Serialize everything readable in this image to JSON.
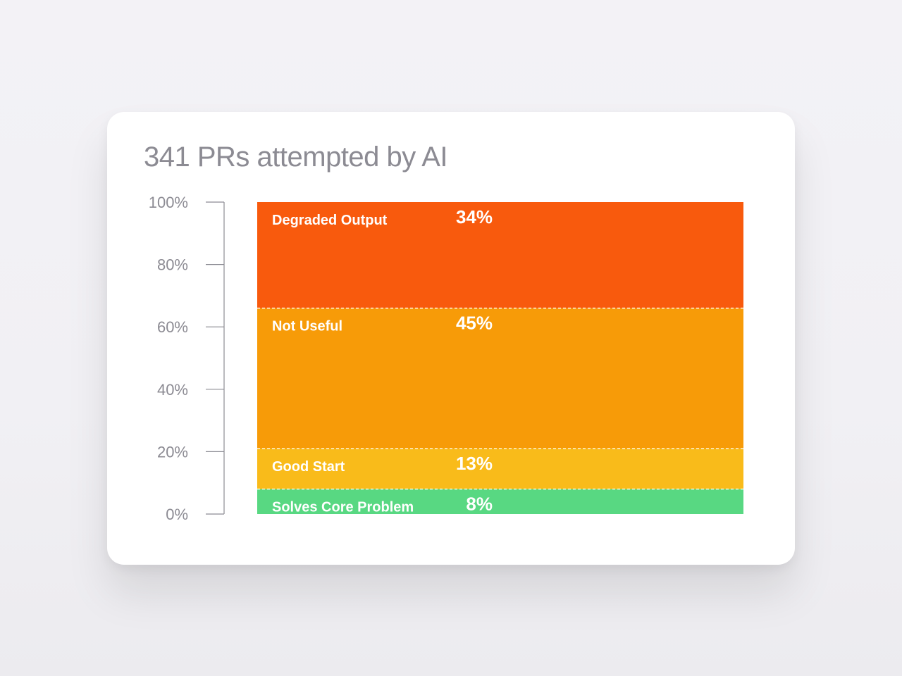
{
  "card": {
    "title": "341 PRs attempted by AI"
  },
  "chart_data": {
    "type": "bar",
    "stacked": true,
    "title": "341 PRs attempted by AI",
    "xlabel": "",
    "ylabel": "",
    "ylim": [
      0,
      100
    ],
    "y_ticks": [
      0,
      20,
      40,
      60,
      80,
      100
    ],
    "y_tick_labels": [
      "0%",
      "20%",
      "40%",
      "60%",
      "80%",
      "100%"
    ],
    "grid": false,
    "segments": [
      {
        "name": "Solves Core Problem",
        "value": 8,
        "label": "8%",
        "color": "#58d882"
      },
      {
        "name": "Good Start",
        "value": 13,
        "label": "13%",
        "color": "#f9bb1a"
      },
      {
        "name": "Not Useful",
        "value": 45,
        "label": "45%",
        "color": "#f79b08"
      },
      {
        "name": "Degraded Output",
        "value": 34,
        "label": "34%",
        "color": "#f85a0d"
      }
    ],
    "separator_color": "#ffffff",
    "axis_color": "#8c8b93"
  }
}
